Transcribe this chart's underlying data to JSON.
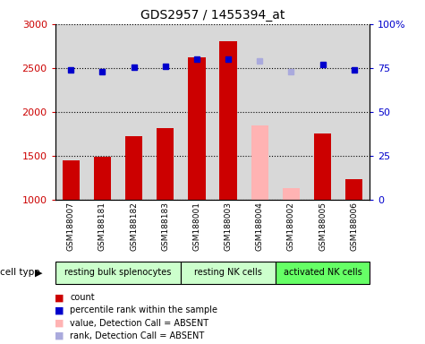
{
  "title": "GDS2957 / 1455394_at",
  "samples": [
    "GSM188007",
    "GSM188181",
    "GSM188182",
    "GSM188183",
    "GSM188001",
    "GSM188003",
    "GSM188004",
    "GSM188002",
    "GSM188005",
    "GSM188006"
  ],
  "groups": [
    {
      "label": "resting bulk splenocytes",
      "color": "#ccffcc",
      "indices": [
        0,
        1,
        2,
        3
      ]
    },
    {
      "label": "resting NK cells",
      "color": "#ccffcc",
      "indices": [
        4,
        5,
        6
      ]
    },
    {
      "label": "activated NK cells",
      "color": "#66ff66",
      "indices": [
        7,
        8,
        9
      ]
    }
  ],
  "count_values": [
    1445,
    1490,
    1720,
    1810,
    2620,
    2800,
    null,
    null,
    1750,
    1230
  ],
  "count_absent_values": [
    null,
    null,
    null,
    null,
    null,
    null,
    1840,
    1130,
    null,
    null
  ],
  "percentile_values": [
    74,
    73,
    75.5,
    76,
    80,
    80,
    null,
    null,
    77,
    74
  ],
  "percentile_absent_values": [
    null,
    null,
    null,
    null,
    null,
    null,
    79,
    73,
    null,
    null
  ],
  "ylim_left": [
    1000,
    3000
  ],
  "ylim_right": [
    0,
    100
  ],
  "yticks_left": [
    1000,
    1500,
    2000,
    2500,
    3000
  ],
  "yticks_right": [
    0,
    25,
    50,
    75,
    100
  ],
  "ytick_labels_right": [
    "0",
    "25",
    "50",
    "75",
    "100%"
  ],
  "count_color": "#cc0000",
  "count_absent_color": "#ffb3b3",
  "percentile_color": "#0000cc",
  "percentile_absent_color": "#aaaadd",
  "sample_area_color": "#d8d8d8"
}
